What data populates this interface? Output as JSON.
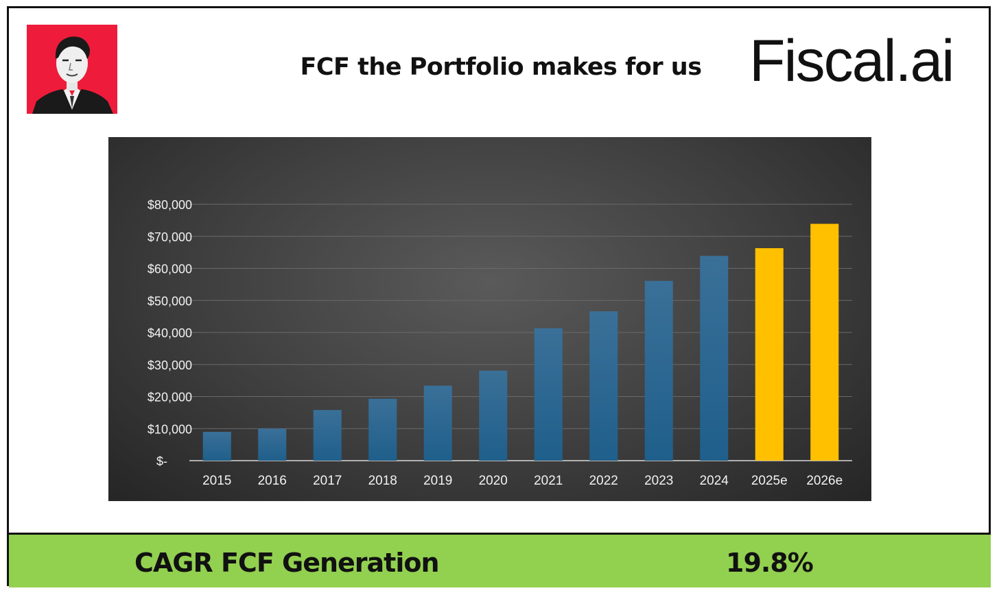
{
  "header": {
    "title": "FCF the Portfolio makes for us",
    "logo_text": "Fiscal.ai"
  },
  "footer": {
    "label": "CAGR FCF Generation",
    "value": "19.8%"
  },
  "colors": {
    "actual_bar": "#1f5f8b",
    "estimate_bar": "#ffc000",
    "footer_bg": "#92d050",
    "avatar_bg": "#ee1c3a"
  },
  "chart_data": {
    "type": "bar",
    "categories": [
      "2015",
      "2016",
      "2017",
      "2018",
      "2019",
      "2020",
      "2021",
      "2022",
      "2023",
      "2024",
      "2025e",
      "2026e"
    ],
    "values": [
      9000,
      10000,
      15800,
      19300,
      23400,
      28100,
      41300,
      46600,
      56100,
      63900,
      66300,
      73900
    ],
    "estimate": [
      false,
      false,
      false,
      false,
      false,
      false,
      false,
      false,
      false,
      false,
      true,
      true
    ],
    "y_ticks": [
      0,
      10000,
      20000,
      30000,
      40000,
      50000,
      60000,
      70000,
      80000
    ],
    "y_tick_labels": [
      "$-",
      "$10,000",
      "$20,000",
      "$30,000",
      "$40,000",
      "$50,000",
      "$60,000",
      "$70,000",
      "$80,000"
    ],
    "ylim": [
      0,
      80000
    ],
    "grid": true,
    "legend": "none"
  }
}
